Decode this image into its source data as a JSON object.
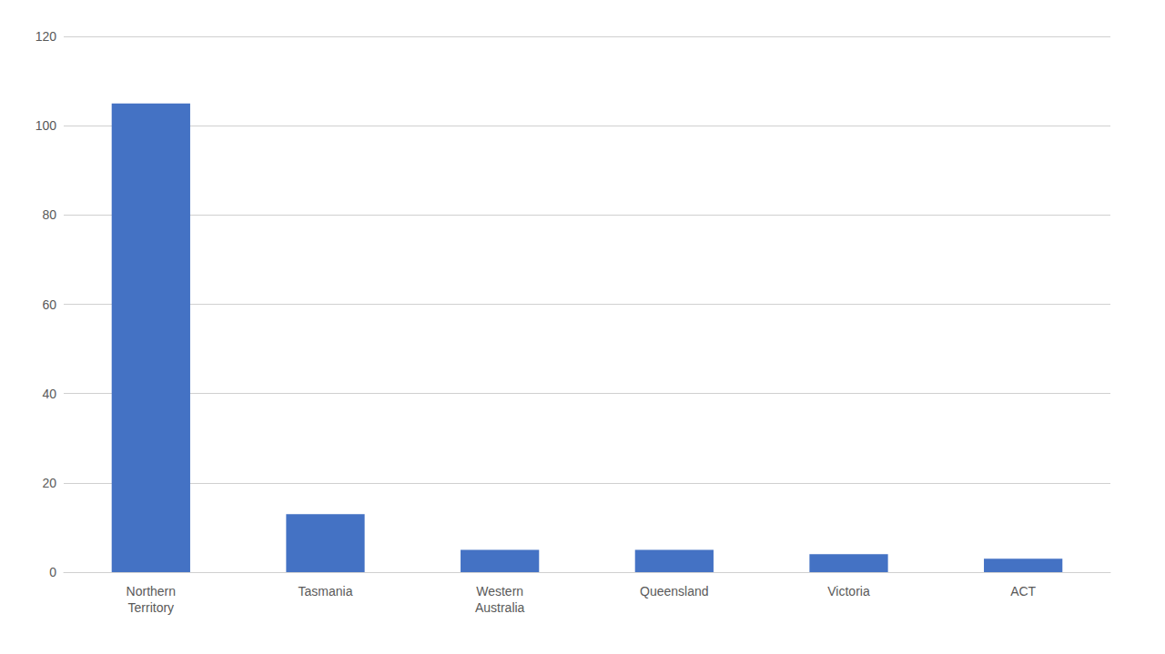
{
  "chart_data": {
    "type": "bar",
    "categories": [
      "Northern\nTerritory",
      "Tasmania",
      "Western\nAustralia",
      "Queensland",
      "Victoria",
      "ACT"
    ],
    "values": [
      105,
      13,
      5,
      5,
      4,
      3
    ],
    "color": "#4472C4",
    "ylim": [
      0,
      120
    ],
    "yticks": [
      0,
      20,
      40,
      60,
      80,
      100,
      120
    ],
    "grid": true
  }
}
